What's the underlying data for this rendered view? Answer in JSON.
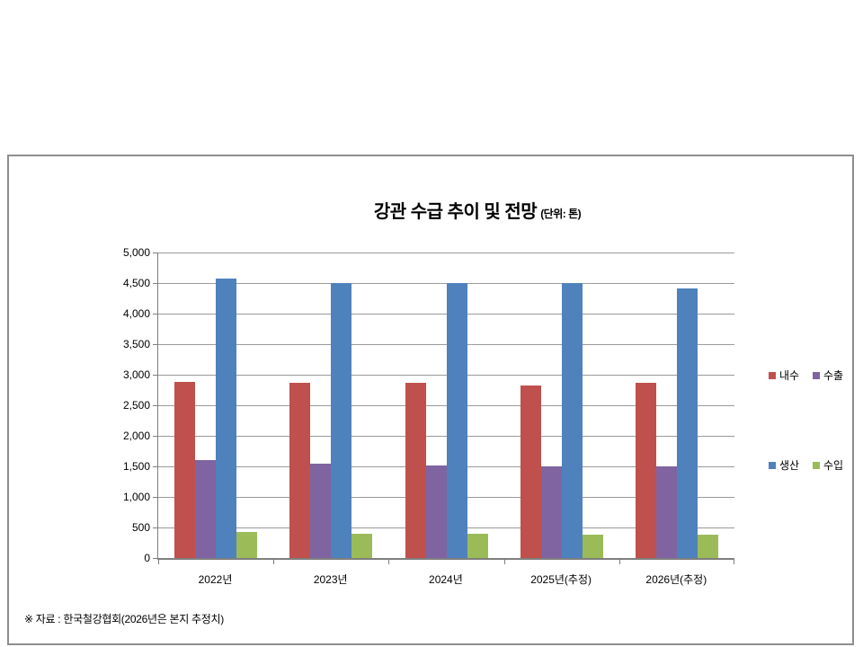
{
  "chart_data": {
    "type": "bar",
    "title": "강관 수급 추이 및 전망",
    "unit": "(단위: 톤)",
    "categories": [
      "2022년",
      "2023년",
      "2024년",
      "2025년(추정)",
      "2026년(추정)"
    ],
    "series": [
      {
        "name": "내수",
        "color": "#C0504D",
        "values": [
          2880,
          2870,
          2870,
          2820,
          2870
        ]
      },
      {
        "name": "수출",
        "color": "#8064A2",
        "values": [
          1600,
          1550,
          1510,
          1500,
          1500
        ]
      },
      {
        "name": "생산",
        "color": "#4F81BD",
        "values": [
          4580,
          4500,
          4500,
          4500,
          4410
        ]
      },
      {
        "name": "수입",
        "color": "#9BBB59",
        "values": [
          420,
          400,
          400,
          380,
          380
        ]
      }
    ],
    "ylim": [
      0,
      5000
    ],
    "y_tick_step": 500,
    "y_tick_labels": [
      "0",
      "500",
      "1,000",
      "1,500",
      "2,000",
      "2,500",
      "3,000",
      "3,500",
      "4,000",
      "4,500",
      "5,000"
    ],
    "grid": "horizontal",
    "legend_position": "right",
    "legend_layout": [
      [
        "내수",
        "수출"
      ],
      [
        "생산",
        "수입"
      ]
    ],
    "source_note": "※ 자료 : 한국철강협회(2026년은 본지 추정치)"
  },
  "colors": {
    "frame_border": "#8e8e8e",
    "gridline": "#9a9a9a",
    "axis": "#7f7f7f",
    "background": "#ffffff",
    "text": "#000000"
  }
}
